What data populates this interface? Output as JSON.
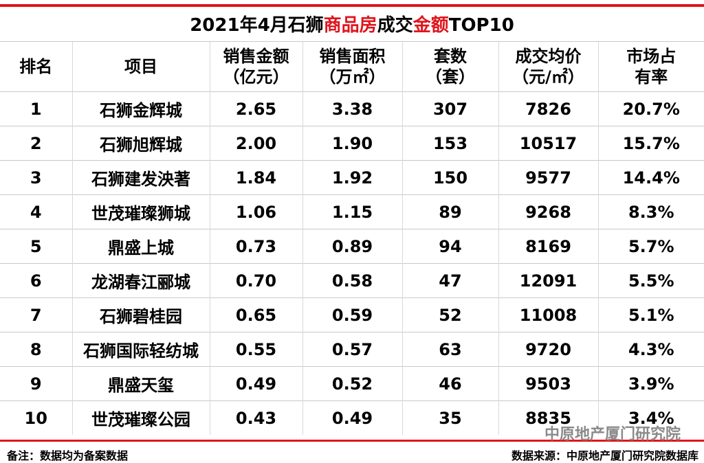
{
  "title_parts": [
    "2021年4月石狮",
    "商品房",
    "成交",
    "金额",
    "TOP10"
  ],
  "table": {
    "header": [
      [
        "排名"
      ],
      [
        "项目"
      ],
      [
        "销售金额",
        "（亿元）"
      ],
      [
        "销售面积",
        "（万㎡）"
      ],
      [
        "套数",
        "（套）"
      ],
      [
        "成交均价",
        "（元/㎡）"
      ],
      [
        "市场占",
        "有率"
      ]
    ],
    "rows": [
      [
        "1",
        "石狮金辉城",
        "2.65",
        "3.38",
        "307",
        "7826",
        "20.7%"
      ],
      [
        "2",
        "石狮旭辉城",
        "2.00",
        "1.90",
        "153",
        "10517",
        "15.7%"
      ],
      [
        "3",
        "石狮建发泱著",
        "1.84",
        "1.92",
        "150",
        "9577",
        "14.4%"
      ],
      [
        "4",
        "世茂璀璨狮城",
        "1.06",
        "1.15",
        "89",
        "9268",
        "8.3%"
      ],
      [
        "5",
        "鼎盛上城",
        "0.73",
        "0.89",
        "94",
        "8169",
        "5.7%"
      ],
      [
        "6",
        "龙湖春江郦城",
        "0.70",
        "0.58",
        "47",
        "12091",
        "5.5%"
      ],
      [
        "7",
        "石狮碧桂园",
        "0.65",
        "0.59",
        "52",
        "11008",
        "5.1%"
      ],
      [
        "8",
        "石狮国际轻纺城",
        "0.55",
        "0.57",
        "63",
        "9720",
        "4.3%"
      ],
      [
        "9",
        "鼎盛天玺",
        "0.49",
        "0.52",
        "46",
        "9503",
        "3.9%"
      ],
      [
        "10",
        "世茂璀璨公园",
        "0.43",
        "0.49",
        "35",
        "8835",
        "3.4%"
      ]
    ]
  },
  "watermark": "中原地产厦门研究院",
  "footer": {
    "note": "备注：数据均为备案数据",
    "source": "数据来源：中原地产厦门研究院数据库"
  }
}
